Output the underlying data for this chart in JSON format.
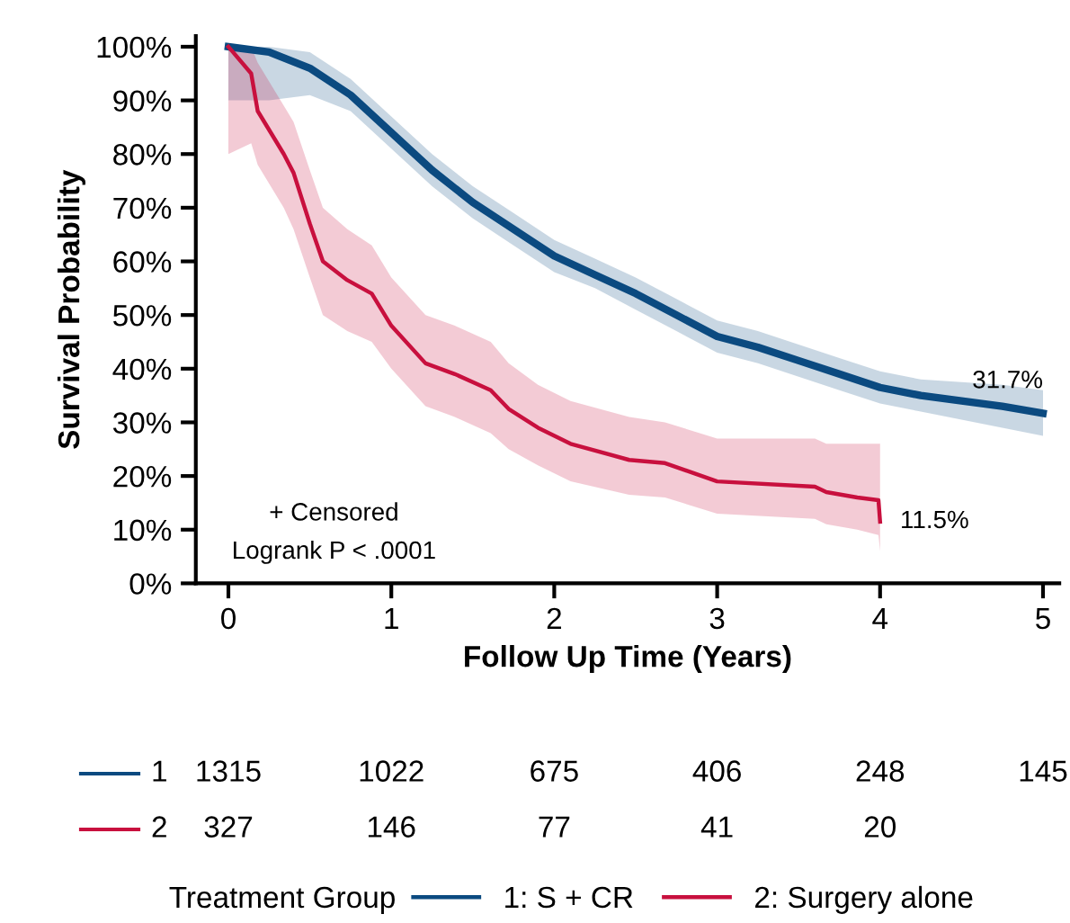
{
  "chart_data": {
    "type": "line",
    "xlabel": "Follow Up Time (Years)",
    "ylabel": "Survival Probability",
    "legend_title": "Treatment Group",
    "legend": "bottom",
    "grid": false,
    "xlim": [
      -0.2,
      5.1
    ],
    "xticks": [
      0,
      1,
      2,
      3,
      4,
      5
    ],
    "ylim": [
      0,
      102
    ],
    "yticks": [
      {
        "value": 0,
        "label": "0%"
      },
      {
        "value": 10,
        "label": "10%"
      },
      {
        "value": 20,
        "label": "20%"
      },
      {
        "value": 30,
        "label": "30%"
      },
      {
        "value": 40,
        "label": "40%"
      },
      {
        "value": 50,
        "label": "50%"
      },
      {
        "value": 60,
        "label": "60%"
      },
      {
        "value": 70,
        "label": "70%"
      },
      {
        "value": 80,
        "label": "80%"
      },
      {
        "value": 90,
        "label": "90%"
      },
      {
        "value": 100,
        "label": "100%"
      }
    ],
    "series": [
      {
        "name": "1: S + CR",
        "color": "#0b4a80",
        "x": [
          0,
          0.25,
          0.5,
          0.75,
          1,
          1.25,
          1.5,
          1.75,
          2,
          2.25,
          2.5,
          2.75,
          3,
          3.25,
          3.5,
          3.75,
          4,
          4.25,
          4.5,
          4.75,
          5
        ],
        "values": [
          100,
          99,
          96,
          91,
          84,
          77,
          71,
          66,
          61,
          57.5,
          54,
          50,
          46,
          44,
          41.5,
          39,
          36.5,
          35,
          34,
          33,
          31.7
        ],
        "lower": [
          90,
          90,
          91,
          88,
          81,
          74,
          68,
          63,
          58,
          55,
          51,
          47,
          43,
          41,
          38.5,
          36,
          33.5,
          32,
          30.5,
          29,
          27.5
        ],
        "upper": [
          100,
          100,
          99,
          94,
          87,
          80,
          74,
          69,
          64,
          60.5,
          57,
          53,
          49,
          47,
          44.5,
          42,
          39.5,
          38,
          37.5,
          37,
          36
        ]
      },
      {
        "name": "2: Surgery alone",
        "color": "#c8103e",
        "x": [
          0,
          0.14,
          0.18,
          0.34,
          0.4,
          0.5,
          0.58,
          0.73,
          0.88,
          1.0,
          1.21,
          1.39,
          1.61,
          1.72,
          1.9,
          2.1,
          2.46,
          2.68,
          3.0,
          3.6,
          3.67,
          3.86,
          3.99,
          4
        ],
        "values": [
          100,
          95,
          88,
          80,
          76.5,
          67,
          60,
          56.5,
          54,
          48,
          41,
          39,
          36,
          32.5,
          29,
          26,
          23,
          22.4,
          19,
          18,
          17,
          16,
          15.5,
          11.5
        ],
        "lower": [
          80,
          82,
          78,
          70,
          66,
          57,
          50,
          47,
          45,
          40,
          33,
          31,
          28,
          25,
          22,
          19,
          16.5,
          16,
          13,
          12,
          11,
          10,
          9,
          6
        ],
        "upper": [
          100,
          100,
          97,
          89,
          86,
          77,
          70,
          66,
          63,
          57,
          50,
          48,
          45,
          41,
          37,
          34,
          31,
          30,
          27,
          27,
          26,
          26,
          26,
          26
        ]
      }
    ],
    "annotations": [
      "+ Censored",
      "Logrank P < .0001",
      {
        "text": "31.7%",
        "x": 5,
        "y": 31.7
      },
      {
        "text": "11.5%",
        "x": 4,
        "y": 11.5
      },
      "1",
      "1315",
      "1022",
      "675",
      "406",
      "248",
      "145",
      "2",
      "327",
      "146",
      "77",
      "41",
      "20"
    ]
  }
}
